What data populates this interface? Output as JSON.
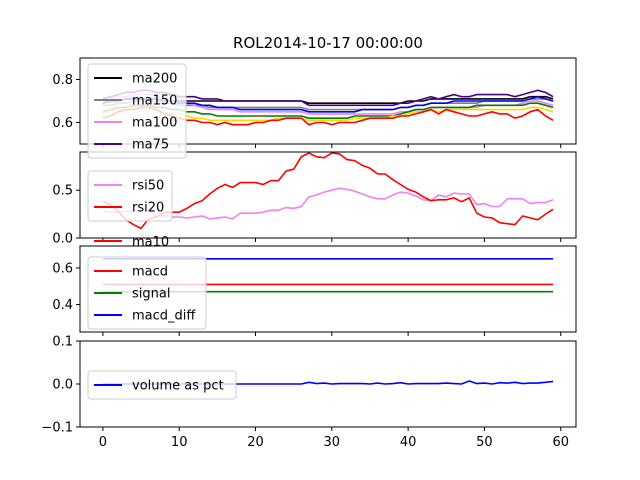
{
  "title": "ROL2014-10-17 00:00:00",
  "chart_data": [
    {
      "type": "line",
      "panel": "moving-averages",
      "ylim": [
        0.5,
        0.9
      ],
      "xlim": [
        -3,
        62
      ],
      "yticks": [
        "0.6",
        "0.8"
      ],
      "legend_position": "top-left",
      "series": [
        {
          "name": "ma200",
          "color": "#000000",
          "values": [
            0.69,
            0.7,
            0.7,
            0.71,
            0.71,
            0.71,
            0.71,
            0.71,
            0.7,
            0.7,
            0.7,
            0.7,
            0.7,
            0.7,
            0.7,
            0.7,
            0.7,
            0.7,
            0.7,
            0.7,
            0.7,
            0.7,
            0.7,
            0.7,
            0.7,
            0.7,
            0.7,
            0.69,
            0.69,
            0.69,
            0.69,
            0.69,
            0.69,
            0.69,
            0.69,
            0.69,
            0.69,
            0.69,
            0.69,
            0.69,
            0.7,
            0.7,
            0.7,
            0.71,
            0.71,
            0.71,
            0.71,
            0.71,
            0.71,
            0.71,
            0.71,
            0.71,
            0.71,
            0.71,
            0.71,
            0.71,
            0.72,
            0.72,
            0.72,
            0.71
          ]
        },
        {
          "name": "ma150",
          "color": "#808080",
          "values": [
            0.68,
            0.68,
            0.69,
            0.69,
            0.7,
            0.7,
            0.7,
            0.7,
            0.69,
            0.69,
            0.68,
            0.68,
            0.68,
            0.68,
            0.67,
            0.67,
            0.67,
            0.67,
            0.67,
            0.67,
            0.67,
            0.67,
            0.67,
            0.67,
            0.67,
            0.67,
            0.67,
            0.66,
            0.66,
            0.66,
            0.66,
            0.66,
            0.66,
            0.66,
            0.66,
            0.66,
            0.66,
            0.66,
            0.66,
            0.67,
            0.67,
            0.68,
            0.68,
            0.69,
            0.69,
            0.69,
            0.69,
            0.69,
            0.69,
            0.69,
            0.7,
            0.7,
            0.7,
            0.7,
            0.7,
            0.7,
            0.71,
            0.71,
            0.71,
            0.7
          ]
        },
        {
          "name": "ma100",
          "color": "#ee82ee",
          "values": [
            0.7,
            0.71,
            0.72,
            0.72,
            0.73,
            0.73,
            0.73,
            0.72,
            0.71,
            0.7,
            0.69,
            0.69,
            0.68,
            0.67,
            0.66,
            0.66,
            0.66,
            0.66,
            0.65,
            0.65,
            0.65,
            0.65,
            0.65,
            0.65,
            0.65,
            0.65,
            0.65,
            0.64,
            0.64,
            0.64,
            0.64,
            0.64,
            0.64,
            0.64,
            0.64,
            0.64,
            0.64,
            0.64,
            0.64,
            0.65,
            0.65,
            0.66,
            0.66,
            0.67,
            0.67,
            0.67,
            0.67,
            0.67,
            0.67,
            0.67,
            0.68,
            0.68,
            0.68,
            0.68,
            0.68,
            0.69,
            0.7,
            0.7,
            0.69,
            0.68
          ]
        },
        {
          "name": "ma75",
          "color": "#4b0082",
          "values": [
            0.71,
            0.72,
            0.73,
            0.74,
            0.74,
            0.75,
            0.75,
            0.74,
            0.74,
            0.73,
            0.72,
            0.72,
            0.72,
            0.71,
            0.71,
            0.71,
            0.7,
            0.7,
            0.7,
            0.7,
            0.7,
            0.7,
            0.7,
            0.7,
            0.7,
            0.7,
            0.7,
            0.68,
            0.68,
            0.68,
            0.68,
            0.68,
            0.68,
            0.68,
            0.68,
            0.68,
            0.68,
            0.68,
            0.68,
            0.69,
            0.69,
            0.7,
            0.71,
            0.72,
            0.71,
            0.72,
            0.73,
            0.72,
            0.72,
            0.73,
            0.73,
            0.73,
            0.73,
            0.73,
            0.72,
            0.73,
            0.74,
            0.75,
            0.74,
            0.72
          ]
        },
        {
          "name": "",
          "color": "#0000ff",
          "values": [
            0.69,
            0.7,
            0.7,
            0.71,
            0.71,
            0.71,
            0.71,
            0.71,
            0.7,
            0.7,
            0.69,
            0.69,
            0.69,
            0.68,
            0.68,
            0.67,
            0.67,
            0.67,
            0.66,
            0.66,
            0.66,
            0.66,
            0.66,
            0.66,
            0.66,
            0.66,
            0.66,
            0.65,
            0.65,
            0.65,
            0.65,
            0.65,
            0.65,
            0.65,
            0.66,
            0.66,
            0.66,
            0.66,
            0.66,
            0.67,
            0.67,
            0.68,
            0.68,
            0.69,
            0.69,
            0.69,
            0.7,
            0.7,
            0.7,
            0.7,
            0.7,
            0.7,
            0.7,
            0.7,
            0.7,
            0.7,
            0.71,
            0.72,
            0.71,
            0.7
          ]
        },
        {
          "name": "",
          "color": "#008000",
          "values": [
            0.65,
            0.66,
            0.67,
            0.67,
            0.68,
            0.68,
            0.68,
            0.67,
            0.67,
            0.66,
            0.66,
            0.65,
            0.65,
            0.64,
            0.64,
            0.63,
            0.63,
            0.63,
            0.63,
            0.63,
            0.63,
            0.63,
            0.63,
            0.63,
            0.63,
            0.63,
            0.63,
            0.62,
            0.62,
            0.62,
            0.62,
            0.62,
            0.62,
            0.63,
            0.63,
            0.63,
            0.63,
            0.63,
            0.63,
            0.64,
            0.65,
            0.66,
            0.66,
            0.67,
            0.67,
            0.67,
            0.67,
            0.67,
            0.67,
            0.68,
            0.68,
            0.68,
            0.68,
            0.68,
            0.68,
            0.68,
            0.69,
            0.69,
            0.68,
            0.67
          ]
        },
        {
          "name": "",
          "color": "#ffd700",
          "values": [
            0.64,
            0.65,
            0.66,
            0.66,
            0.67,
            0.67,
            0.67,
            0.66,
            0.65,
            0.64,
            0.64,
            0.63,
            0.62,
            0.62,
            0.61,
            0.61,
            0.61,
            0.61,
            0.61,
            0.61,
            0.61,
            0.61,
            0.61,
            0.62,
            0.62,
            0.62,
            0.62,
            0.61,
            0.61,
            0.61,
            0.61,
            0.61,
            0.61,
            0.62,
            0.62,
            0.62,
            0.62,
            0.62,
            0.63,
            0.63,
            0.64,
            0.65,
            0.65,
            0.66,
            0.65,
            0.66,
            0.66,
            0.66,
            0.66,
            0.66,
            0.66,
            0.66,
            0.66,
            0.66,
            0.66,
            0.66,
            0.67,
            0.67,
            0.66,
            0.65
          ]
        },
        {
          "name": "",
          "color": "#ff0000",
          "values": [
            0.62,
            0.63,
            0.65,
            0.66,
            0.66,
            0.67,
            0.67,
            0.66,
            0.64,
            0.63,
            0.62,
            0.61,
            0.61,
            0.6,
            0.6,
            0.59,
            0.6,
            0.59,
            0.59,
            0.59,
            0.6,
            0.6,
            0.61,
            0.61,
            0.62,
            0.62,
            0.62,
            0.59,
            0.6,
            0.6,
            0.59,
            0.6,
            0.6,
            0.6,
            0.61,
            0.62,
            0.62,
            0.62,
            0.62,
            0.63,
            0.63,
            0.64,
            0.65,
            0.66,
            0.64,
            0.66,
            0.65,
            0.64,
            0.63,
            0.63,
            0.64,
            0.65,
            0.64,
            0.64,
            0.62,
            0.63,
            0.65,
            0.66,
            0.63,
            0.61
          ]
        }
      ]
    },
    {
      "type": "line",
      "panel": "rsi",
      "ylim": [
        0.0,
        0.9
      ],
      "xlim": [
        -3,
        62
      ],
      "yticks": [
        "0.0",
        "0.5"
      ],
      "legend_position": "center-left",
      "series": [
        {
          "name": "rsi50",
          "color": "#ee82ee",
          "values": [
            0.28,
            0.27,
            0.27,
            0.28,
            0.28,
            0.28,
            0.29,
            0.23,
            0.23,
            0.22,
            0.22,
            0.21,
            0.22,
            0.23,
            0.2,
            0.21,
            0.22,
            0.2,
            0.26,
            0.26,
            0.26,
            0.27,
            0.29,
            0.29,
            0.32,
            0.31,
            0.33,
            0.43,
            0.45,
            0.48,
            0.5,
            0.52,
            0.51,
            0.49,
            0.46,
            0.43,
            0.41,
            0.41,
            0.45,
            0.48,
            0.47,
            0.44,
            0.4,
            0.39,
            0.45,
            0.43,
            0.47,
            0.46,
            0.46,
            0.35,
            0.36,
            0.33,
            0.33,
            0.41,
            0.41,
            0.41,
            0.36,
            0.37,
            0.37,
            0.4
          ]
        },
        {
          "name": "rsi20",
          "color": "#ff0000",
          "values": [
            0.38,
            0.35,
            0.28,
            0.19,
            0.14,
            0.1,
            0.2,
            0.22,
            0.27,
            0.27,
            0.27,
            0.31,
            0.36,
            0.39,
            0.46,
            0.52,
            0.56,
            0.53,
            0.58,
            0.58,
            0.58,
            0.56,
            0.6,
            0.6,
            0.7,
            0.72,
            0.85,
            0.89,
            0.85,
            0.84,
            0.89,
            0.88,
            0.82,
            0.81,
            0.76,
            0.73,
            0.67,
            0.67,
            0.61,
            0.56,
            0.51,
            0.48,
            0.43,
            0.39,
            0.4,
            0.4,
            0.42,
            0.38,
            0.42,
            0.26,
            0.22,
            0.21,
            0.16,
            0.15,
            0.14,
            0.23,
            0.21,
            0.19,
            0.25,
            0.3
          ]
        }
      ]
    },
    {
      "type": "line",
      "panel": "macd",
      "ylim": [
        0.25,
        0.72
      ],
      "xlim": [
        -3,
        62
      ],
      "yticks": [
        "0.4",
        "0.6"
      ],
      "legend_position": "top-left",
      "series": [
        {
          "name": "ma10",
          "color": "#ff0000",
          "values": []
        },
        {
          "name": "macd",
          "color": "#ff0000",
          "values": [
            0.51,
            0.51,
            0.51,
            0.51,
            0.51,
            0.51,
            0.51,
            0.51,
            0.51,
            0.51,
            0.51,
            0.51,
            0.51,
            0.51,
            0.51,
            0.51,
            0.51,
            0.51,
            0.51,
            0.51,
            0.51,
            0.51,
            0.51,
            0.51,
            0.51,
            0.51,
            0.51,
            0.51,
            0.51,
            0.51,
            0.51,
            0.51,
            0.51,
            0.51,
            0.51,
            0.51,
            0.51,
            0.51,
            0.51,
            0.51,
            0.51,
            0.51,
            0.51,
            0.51,
            0.51,
            0.51,
            0.51,
            0.51,
            0.51,
            0.51,
            0.51,
            0.51,
            0.51,
            0.51,
            0.51,
            0.51,
            0.51,
            0.51,
            0.51,
            0.51
          ]
        },
        {
          "name": "signal",
          "color": "#008000",
          "values": [
            0.47,
            0.47,
            0.47,
            0.47,
            0.47,
            0.47,
            0.47,
            0.47,
            0.47,
            0.47,
            0.47,
            0.47,
            0.47,
            0.47,
            0.47,
            0.47,
            0.47,
            0.47,
            0.47,
            0.47,
            0.47,
            0.47,
            0.47,
            0.47,
            0.47,
            0.47,
            0.47,
            0.47,
            0.47,
            0.47,
            0.47,
            0.47,
            0.47,
            0.47,
            0.47,
            0.47,
            0.47,
            0.47,
            0.47,
            0.47,
            0.47,
            0.47,
            0.47,
            0.47,
            0.47,
            0.47,
            0.47,
            0.47,
            0.47,
            0.47,
            0.47,
            0.47,
            0.47,
            0.47,
            0.47,
            0.47,
            0.47,
            0.47,
            0.47,
            0.47
          ]
        },
        {
          "name": "macd_diff",
          "color": "#0000ff",
          "values": [
            0.65,
            0.65,
            0.65,
            0.65,
            0.65,
            0.65,
            0.65,
            0.65,
            0.65,
            0.65,
            0.65,
            0.65,
            0.65,
            0.65,
            0.65,
            0.65,
            0.65,
            0.65,
            0.65,
            0.65,
            0.65,
            0.65,
            0.65,
            0.65,
            0.65,
            0.65,
            0.65,
            0.65,
            0.65,
            0.65,
            0.65,
            0.65,
            0.65,
            0.65,
            0.65,
            0.65,
            0.65,
            0.65,
            0.65,
            0.65,
            0.65,
            0.65,
            0.65,
            0.65,
            0.65,
            0.65,
            0.65,
            0.65,
            0.65,
            0.65,
            0.65,
            0.65,
            0.65,
            0.65,
            0.65,
            0.65,
            0.65,
            0.65,
            0.65,
            0.65
          ]
        }
      ]
    },
    {
      "type": "line",
      "panel": "volume",
      "ylim": [
        -0.1,
        0.1
      ],
      "xlim": [
        -3,
        62
      ],
      "yticks": [
        "0.1",
        "0.0",
        "−0.1"
      ],
      "xticks": [
        "0",
        "10",
        "20",
        "30",
        "40",
        "50",
        "60"
      ],
      "legend_position": "center-left",
      "series": [
        {
          "name": "volume as pct",
          "color": "#0000ff",
          "values": [
            0.0,
            0.0,
            0.0,
            0.0,
            0.0,
            0.0,
            0.0,
            0.0,
            0.0,
            0.0,
            0.0,
            0.0,
            0.0,
            0.0,
            0.0,
            0.0,
            0.0,
            0.0,
            0.0,
            0.0,
            0.0,
            0.0,
            0.0,
            0.0,
            0.0,
            0.0,
            0.0,
            0.004,
            0.001,
            0.002,
            0.0,
            0.001,
            0.001,
            0.001,
            0.001,
            0.0,
            0.002,
            0.0,
            0.001,
            0.003,
            0.0,
            0.001,
            0.001,
            0.001,
            0.001,
            0.002,
            0.001,
            0.0,
            0.007,
            0.001,
            0.002,
            0.0,
            0.003,
            0.002,
            0.004,
            0.001,
            0.002,
            0.002,
            0.004,
            0.006
          ]
        }
      ]
    }
  ]
}
